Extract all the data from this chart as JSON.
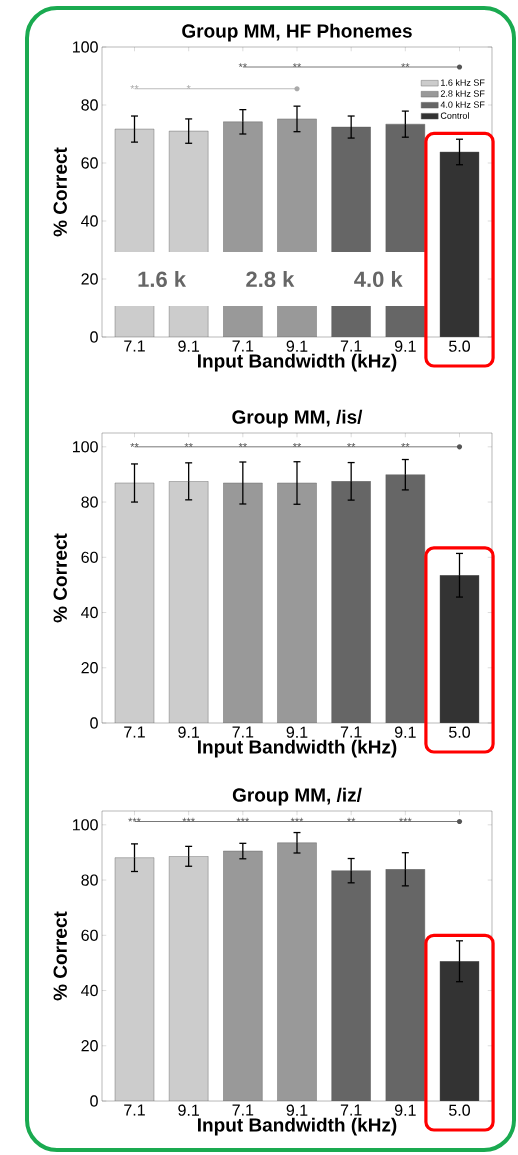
{
  "chart_data": [
    {
      "type": "bar",
      "title": "Group MM, HF Phonemes",
      "xlabel": "Input Bandwidth (kHz)",
      "ylabel": "% Correct",
      "categories": [
        "7.1",
        "9.1",
        "7.1",
        "9.1",
        "7.1",
        "9.1",
        "5.0"
      ],
      "ylim": [
        0,
        100
      ],
      "yticks": [
        0,
        20,
        40,
        60,
        80,
        100
      ],
      "legend": "top right",
      "series": [
        {
          "name": "1.6 kHz SF",
          "color": "#cccccc",
          "values": [
            71.7,
            71.0,
            null,
            null,
            null,
            null,
            null
          ],
          "errors": [
            4.5,
            4.2,
            null,
            null,
            null,
            null,
            null
          ]
        },
        {
          "name": "2.8 kHz SF",
          "color": "#999999",
          "values": [
            null,
            null,
            74.2,
            75.2,
            null,
            null,
            null
          ],
          "errors": [
            null,
            null,
            4.2,
            4.4,
            null,
            null,
            null
          ]
        },
        {
          "name": "4.0 kHz SF",
          "color": "#666666",
          "values": [
            null,
            null,
            null,
            null,
            72.4,
            73.4,
            null
          ],
          "errors": [
            null,
            null,
            null,
            null,
            3.8,
            4.5,
            null
          ]
        },
        {
          "name": "Control",
          "color": "#333333",
          "values": [
            null,
            null,
            null,
            null,
            null,
            null,
            63.8
          ],
          "errors": [
            null,
            null,
            null,
            null,
            null,
            null,
            4.4
          ]
        }
      ],
      "annotations": [
        "**",
        "*",
        "**",
        "**",
        "**",
        "1.6 k",
        "2.8 k",
        "4.0 k"
      ],
      "ref_lines": [
        {
          "axis": "y",
          "value": 85.6,
          "color": "#aaaaaa"
        },
        {
          "axis": "y",
          "value": 93.1,
          "color": "#555555"
        }
      ]
    },
    {
      "type": "bar",
      "title": "Group MM, /is/",
      "xlabel": "Input Bandwidth (kHz)",
      "ylabel": "% Correct",
      "categories": [
        "7.1",
        "9.1",
        "7.1",
        "9.1",
        "7.1",
        "9.1",
        "5.0"
      ],
      "ylim": [
        0,
        105
      ],
      "yticks": [
        0,
        20,
        40,
        60,
        80,
        100
      ],
      "series": [
        {
          "color": "#cccccc",
          "values": [
            86.9,
            87.5,
            null,
            null,
            null,
            null,
            null
          ],
          "errors": [
            6.9,
            6.7,
            null,
            null,
            null,
            null,
            null
          ]
        },
        {
          "color": "#999999",
          "values": [
            null,
            null,
            86.9,
            86.9,
            null,
            null,
            null
          ],
          "errors": [
            null,
            null,
            7.6,
            7.7,
            null,
            null,
            null
          ]
        },
        {
          "color": "#666666",
          "values": [
            null,
            null,
            null,
            null,
            87.5,
            89.9,
            null
          ],
          "errors": [
            null,
            null,
            null,
            null,
            6.8,
            5.5,
            null
          ]
        },
        {
          "color": "#333333",
          "values": [
            null,
            null,
            null,
            null,
            null,
            null,
            53.5
          ],
          "errors": [
            null,
            null,
            null,
            null,
            null,
            null,
            7.9
          ]
        }
      ],
      "annotations": [
        "**",
        "**",
        "**",
        "**",
        "**",
        "**"
      ],
      "ref_lines": [
        {
          "axis": "y",
          "value": 100,
          "color": "#555555"
        }
      ]
    },
    {
      "type": "bar",
      "title": "Group MM, /iz/",
      "xlabel": "Input Bandwidth (kHz)",
      "ylabel": "% Correct",
      "categories": [
        "7.1",
        "9.1",
        "7.1",
        "9.1",
        "7.1",
        "9.1",
        "5.0"
      ],
      "ylim": [
        0,
        105
      ],
      "yticks": [
        0,
        20,
        40,
        60,
        80,
        100
      ],
      "series": [
        {
          "color": "#cccccc",
          "values": [
            88.1,
            88.6,
            null,
            null,
            null,
            null,
            null
          ],
          "errors": [
            5.0,
            3.6,
            null,
            null,
            null,
            null,
            null
          ]
        },
        {
          "color": "#999999",
          "values": [
            null,
            null,
            90.5,
            93.5,
            null,
            null,
            null
          ],
          "errors": [
            null,
            null,
            2.8,
            3.7,
            null,
            null,
            null
          ]
        },
        {
          "color": "#666666",
          "values": [
            null,
            null,
            null,
            null,
            83.4,
            83.9,
            null
          ],
          "errors": [
            null,
            null,
            null,
            null,
            4.4,
            6.0,
            null
          ]
        },
        {
          "color": "#333333",
          "values": [
            null,
            null,
            null,
            null,
            null,
            null,
            50.6
          ],
          "errors": [
            null,
            null,
            null,
            null,
            null,
            null,
            7.4
          ]
        }
      ],
      "annotations": [
        "***",
        "***",
        "***",
        "***",
        "**",
        "***"
      ],
      "ref_lines": [
        {
          "axis": "y",
          "value": 101.2,
          "color": "#555555"
        }
      ]
    }
  ]
}
